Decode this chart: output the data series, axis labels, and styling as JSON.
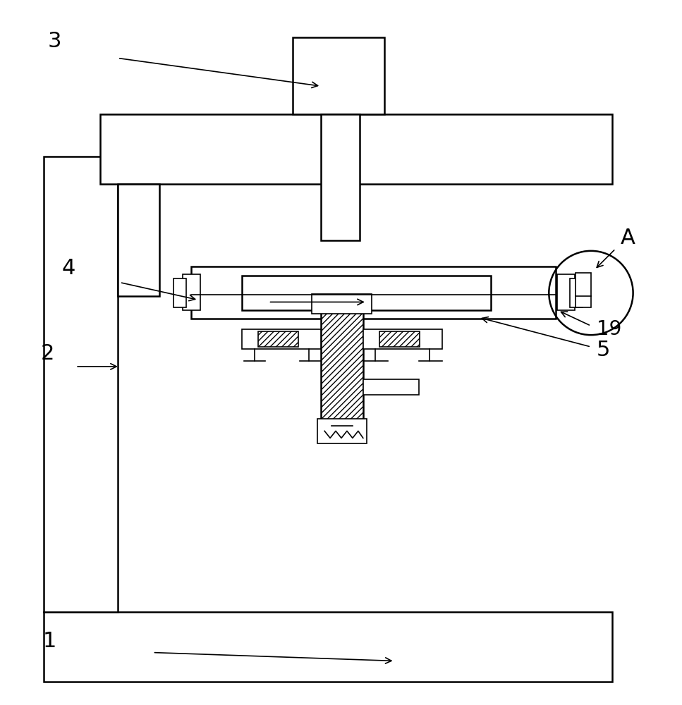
{
  "bg_color": "#ffffff",
  "line_color": "#000000",
  "lw_main": 1.8,
  "lw_thin": 1.2,
  "fig_width": 9.67,
  "fig_height": 10.0
}
